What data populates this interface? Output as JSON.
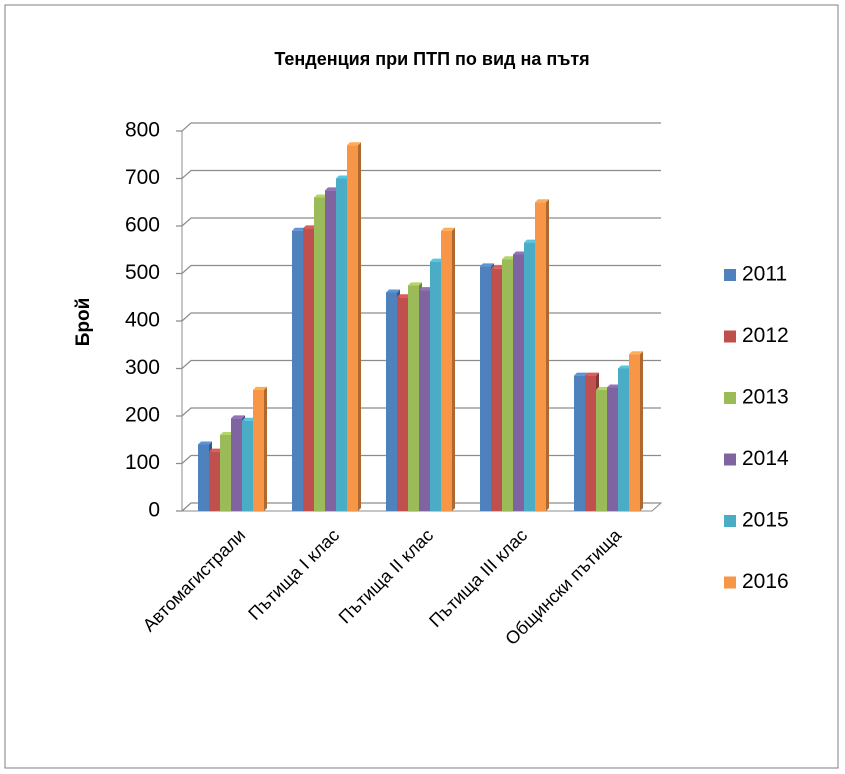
{
  "chart_data": {
    "type": "bar",
    "title": "Тенденция при ПТП по вид на пътя",
    "y_label": "Брой",
    "categories": [
      "Автомагистрали",
      "Пътища I клас",
      "Пътища II клас",
      "Пътища III клас",
      "Общински пътища"
    ],
    "series": [
      {
        "name": "2011",
        "color": "#4f81bd",
        "values": [
          140,
          590,
          460,
          515,
          285
        ]
      },
      {
        "name": "2012",
        "color": "#c0504d",
        "values": [
          125,
          595,
          450,
          510,
          285
        ]
      },
      {
        "name": "2013",
        "color": "#9bbb59",
        "values": [
          160,
          660,
          475,
          530,
          255
        ]
      },
      {
        "name": "2014",
        "color": "#8064a2",
        "values": [
          195,
          675,
          465,
          540,
          260
        ]
      },
      {
        "name": "2015",
        "color": "#4bacc6",
        "values": [
          190,
          700,
          525,
          565,
          300
        ]
      },
      {
        "name": "2016",
        "color": "#f79646",
        "values": [
          255,
          770,
          590,
          650,
          330
        ]
      }
    ],
    "ylim": [
      0,
      800
    ],
    "yticks": [
      0,
      100,
      200,
      300,
      400,
      500,
      600,
      700,
      800
    ],
    "grid": true,
    "legend": "right"
  }
}
